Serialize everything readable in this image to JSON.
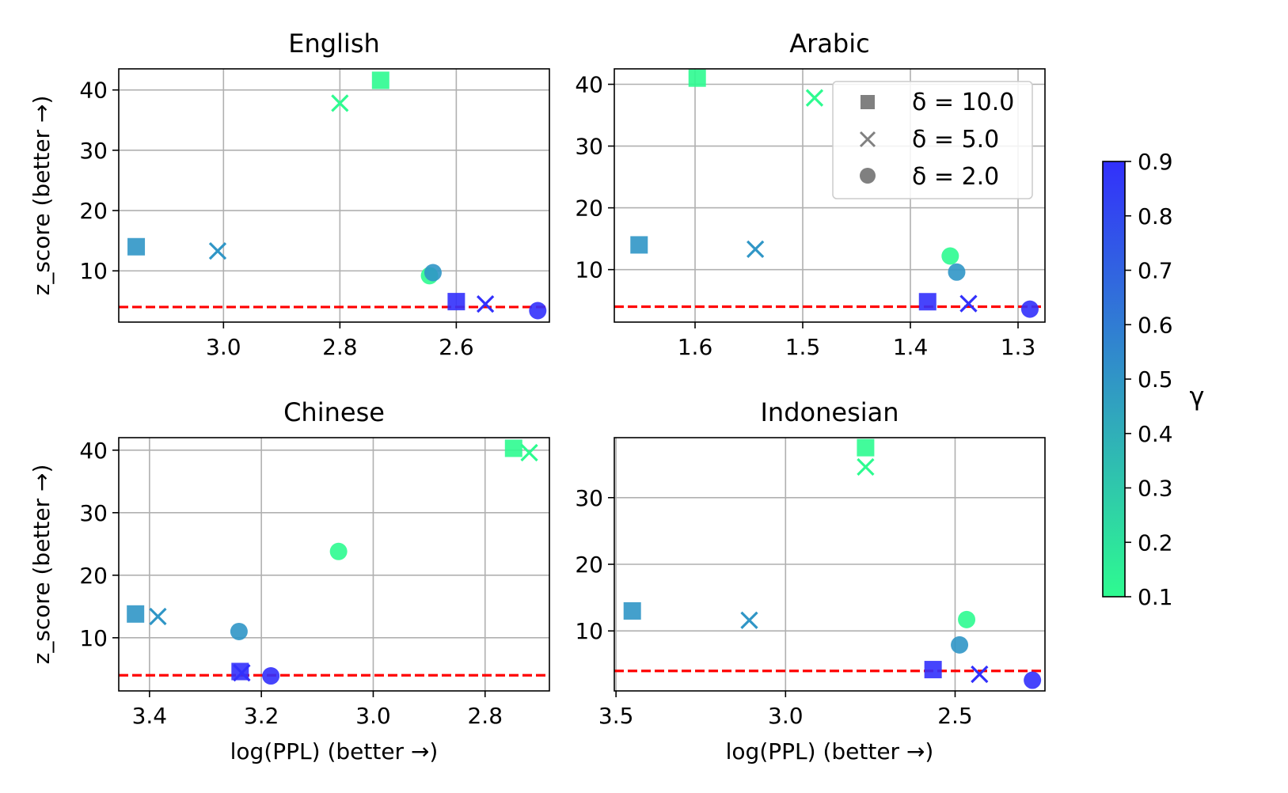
{
  "figure": {
    "colorbar": {
      "label": "γ",
      "range": [
        0.1,
        0.9
      ],
      "ticks": [
        0.1,
        0.2,
        0.3,
        0.4,
        0.5,
        0.6,
        0.7,
        0.8,
        0.9
      ],
      "colors": [
        "#2efb90",
        "#3230fc"
      ]
    },
    "legend": {
      "entries": [
        {
          "marker": "square",
          "label": "δ = 10.0"
        },
        {
          "marker": "x",
          "label": "δ = 5.0"
        },
        {
          "marker": "circle",
          "label": "δ = 2.0"
        }
      ]
    },
    "threshold_color": "#ff0000"
  },
  "chart_data": [
    {
      "type": "scatter",
      "title": "English",
      "xlabel": "",
      "ylabel": "z_score (better →)",
      "xlim": [
        3.18,
        2.44
      ],
      "x_inverted": true,
      "ylim": [
        1.5,
        43.5
      ],
      "xticks": [
        3.0,
        2.8,
        2.6
      ],
      "xtick_labels": [
        "3.0",
        "2.8",
        "2.6"
      ],
      "yticks": [
        10,
        20,
        30,
        40
      ],
      "threshold": 4,
      "points": [
        {
          "x": 3.15,
          "y": 14,
          "delta": 10.0,
          "gamma": 0.5
        },
        {
          "x": 3.01,
          "y": 13.3,
          "delta": 5.0,
          "gamma": 0.5
        },
        {
          "x": 2.8,
          "y": 37.8,
          "delta": 5.0,
          "gamma": 0.1
        },
        {
          "x": 2.73,
          "y": 41.6,
          "delta": 10.0,
          "gamma": 0.1
        },
        {
          "x": 2.646,
          "y": 9.2,
          "delta": 2.0,
          "gamma": 0.1
        },
        {
          "x": 2.64,
          "y": 9.7,
          "delta": 2.0,
          "gamma": 0.5
        },
        {
          "x": 2.6,
          "y": 4.9,
          "delta": 10.0,
          "gamma": 0.9
        },
        {
          "x": 2.55,
          "y": 4.5,
          "delta": 5.0,
          "gamma": 0.9
        },
        {
          "x": 2.46,
          "y": 3.4,
          "delta": 2.0,
          "gamma": 0.9
        }
      ]
    },
    {
      "type": "scatter",
      "title": "Arabic",
      "xlabel": "",
      "ylabel": "",
      "xlim": [
        1.675,
        1.275
      ],
      "x_inverted": true,
      "ylim": [
        1.5,
        42.5
      ],
      "xticks": [
        1.6,
        1.5,
        1.4,
        1.3
      ],
      "xtick_labels": [
        "1.6",
        "1.5",
        "1.4",
        "1.3"
      ],
      "yticks": [
        10,
        20,
        30,
        40
      ],
      "threshold": 4,
      "points": [
        {
          "x": 1.652,
          "y": 14,
          "delta": 10.0,
          "gamma": 0.5
        },
        {
          "x": 1.598,
          "y": 41,
          "delta": 10.0,
          "gamma": 0.1
        },
        {
          "x": 1.544,
          "y": 13.3,
          "delta": 5.0,
          "gamma": 0.5
        },
        {
          "x": 1.489,
          "y": 37.8,
          "delta": 5.0,
          "gamma": 0.1
        },
        {
          "x": 1.363,
          "y": 12.2,
          "delta": 2.0,
          "gamma": 0.1
        },
        {
          "x": 1.357,
          "y": 9.6,
          "delta": 2.0,
          "gamma": 0.5
        },
        {
          "x": 1.384,
          "y": 4.8,
          "delta": 10.0,
          "gamma": 0.9
        },
        {
          "x": 1.346,
          "y": 4.5,
          "delta": 5.0,
          "gamma": 0.9
        },
        {
          "x": 1.289,
          "y": 3.6,
          "delta": 2.0,
          "gamma": 0.9
        }
      ]
    },
    {
      "type": "scatter",
      "title": "Chinese",
      "xlabel": "log(PPL) (better →)",
      "ylabel": "z_score (better →)",
      "xlim": [
        3.455,
        2.685
      ],
      "x_inverted": true,
      "ylim": [
        1.5,
        42
      ],
      "xticks": [
        3.4,
        3.2,
        3.0,
        2.8
      ],
      "xtick_labels": [
        "3.4",
        "3.2",
        "3.0",
        "2.8"
      ],
      "yticks": [
        10,
        20,
        30,
        40
      ],
      "threshold": 4,
      "points": [
        {
          "x": 3.425,
          "y": 13.8,
          "delta": 10.0,
          "gamma": 0.5
        },
        {
          "x": 3.385,
          "y": 13.4,
          "delta": 5.0,
          "gamma": 0.5
        },
        {
          "x": 3.24,
          "y": 11,
          "delta": 2.0,
          "gamma": 0.5
        },
        {
          "x": 3.238,
          "y": 4.6,
          "delta": 10.0,
          "gamma": 0.9
        },
        {
          "x": 3.235,
          "y": 4.4,
          "delta": 5.0,
          "gamma": 0.9
        },
        {
          "x": 3.183,
          "y": 3.9,
          "delta": 2.0,
          "gamma": 0.9
        },
        {
          "x": 3.062,
          "y": 23.8,
          "delta": 2.0,
          "gamma": 0.1
        },
        {
          "x": 2.749,
          "y": 40.3,
          "delta": 10.0,
          "gamma": 0.1
        },
        {
          "x": 2.721,
          "y": 39.6,
          "delta": 5.0,
          "gamma": 0.1
        }
      ]
    },
    {
      "type": "scatter",
      "title": "Indonesian",
      "xlabel": "log(PPL) (better →)",
      "ylabel": "",
      "xlim": [
        3.505,
        2.235
      ],
      "x_inverted": true,
      "ylim": [
        1,
        39
      ],
      "xticks": [
        3.5,
        3.0,
        2.5
      ],
      "xtick_labels": [
        "3.5",
        "3.0",
        "2.5"
      ],
      "yticks": [
        10,
        20,
        30
      ],
      "threshold": 4,
      "points": [
        {
          "x": 3.452,
          "y": 13,
          "delta": 10.0,
          "gamma": 0.5
        },
        {
          "x": 3.107,
          "y": 11.6,
          "delta": 5.0,
          "gamma": 0.5
        },
        {
          "x": 2.764,
          "y": 37.5,
          "delta": 10.0,
          "gamma": 0.1
        },
        {
          "x": 2.764,
          "y": 34.6,
          "delta": 5.0,
          "gamma": 0.1
        },
        {
          "x": 2.466,
          "y": 11.7,
          "delta": 2.0,
          "gamma": 0.1
        },
        {
          "x": 2.487,
          "y": 7.9,
          "delta": 2.0,
          "gamma": 0.5
        },
        {
          "x": 2.565,
          "y": 4.2,
          "delta": 10.0,
          "gamma": 0.9
        },
        {
          "x": 2.428,
          "y": 3.5,
          "delta": 5.0,
          "gamma": 0.9
        },
        {
          "x": 2.272,
          "y": 2.6,
          "delta": 2.0,
          "gamma": 0.9
        }
      ]
    }
  ]
}
